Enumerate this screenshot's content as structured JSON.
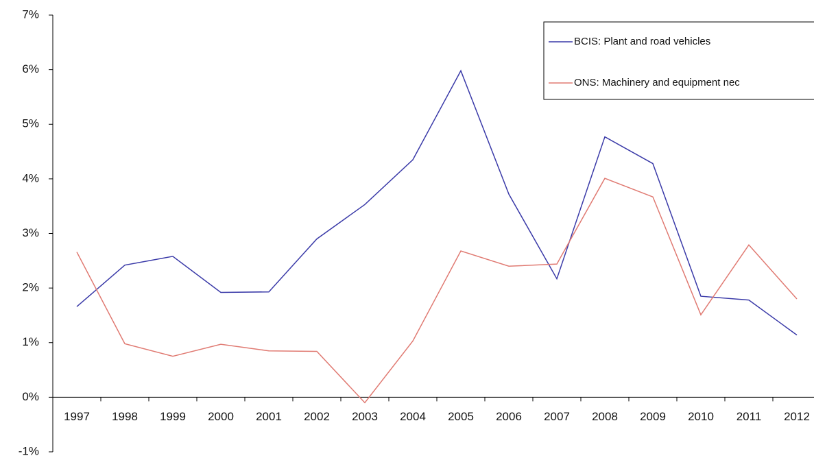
{
  "chart_data": {
    "type": "line",
    "categories": [
      "1997",
      "1998",
      "1999",
      "2000",
      "2001",
      "2002",
      "2003",
      "2004",
      "2005",
      "2006",
      "2007",
      "2008",
      "2009",
      "2010",
      "2011",
      "2012"
    ],
    "series": [
      {
        "name": "BCIS: Plant and road vehicles",
        "color": "#3a3aa8",
        "values": [
          1.66,
          2.42,
          2.58,
          1.92,
          1.93,
          2.9,
          3.53,
          4.35,
          5.98,
          3.72,
          2.17,
          4.77,
          4.28,
          1.85,
          1.78,
          1.14
        ]
      },
      {
        "name": "ONS: Machinery and equipment nec",
        "color": "#e07a72",
        "values": [
          2.66,
          0.98,
          0.75,
          0.97,
          0.85,
          0.84,
          -0.1,
          1.03,
          2.68,
          2.4,
          2.44,
          4.01,
          3.67,
          1.51,
          2.79,
          1.8
        ]
      }
    ],
    "ylim": [
      -1,
      7
    ],
    "yticks": [
      {
        "value": -1,
        "label": "-1%"
      },
      {
        "value": 0,
        "label": "0%"
      },
      {
        "value": 1,
        "label": "1%"
      },
      {
        "value": 2,
        "label": "2%"
      },
      {
        "value": 3,
        "label": "3%"
      },
      {
        "value": 4,
        "label": "4%"
      },
      {
        "value": 5,
        "label": "5%"
      },
      {
        "value": 6,
        "label": "6%"
      },
      {
        "value": 7,
        "label": "7%"
      }
    ],
    "grid": false,
    "legend": "top-right"
  }
}
